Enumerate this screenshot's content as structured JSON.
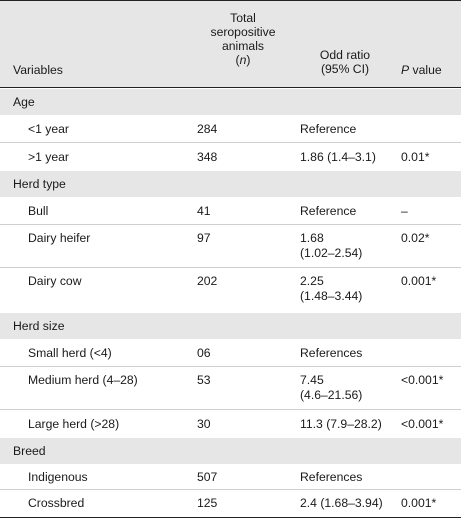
{
  "header": {
    "variables": "Variables",
    "total_line1": "Total",
    "total_line2": "seropositive",
    "total_line3": "animals",
    "total_line4_open": "(",
    "total_line4_n": "n",
    "total_line4_close": ")",
    "odd_line1": "Odd ratio",
    "odd_line2": "(95% CI)",
    "p_italic": "P",
    "p_rest": " value"
  },
  "sections": [
    {
      "title": "Age",
      "rows": [
        {
          "name": "<1 year",
          "n": "284",
          "or": "Reference",
          "p": ""
        },
        {
          "name": ">1 year",
          "n": "348",
          "or": "1.86 (1.4–3.1)",
          "p": "0.01*"
        }
      ]
    },
    {
      "title": "Herd type",
      "rows": [
        {
          "name": "Bull",
          "n": "41",
          "or": "Reference",
          "p": "–"
        },
        {
          "name": "Dairy heifer",
          "n": "97",
          "or_line1": "1.68",
          "or_line2": "(1.02–2.54)",
          "p": "0.02*"
        },
        {
          "name": "Dairy cow",
          "n": "202",
          "or_line1": "2.25",
          "or_line2": "(1.48–3.44)",
          "p": "0.001*"
        }
      ]
    },
    {
      "title": "Herd size",
      "rows": [
        {
          "name": "Small herd (<4)",
          "n": "06",
          "or": "References",
          "p": ""
        },
        {
          "name": "Medium herd (4–28)",
          "n": "53",
          "or_line1": "7.45",
          "or_line2": "(4.6–21.56)",
          "p": "<0.001*"
        },
        {
          "name": "Large herd (>28)",
          "n": "30",
          "or": "11.3 (7.9–28.2)",
          "p": "<0.001*"
        }
      ]
    },
    {
      "title": "Breed",
      "rows": [
        {
          "name": "Indigenous",
          "n": "507",
          "or": "References",
          "p": ""
        },
        {
          "name": "Crossbred",
          "n": "125",
          "or": "2.4 (1.68–3.94)",
          "p": "0.001*"
        }
      ]
    }
  ]
}
